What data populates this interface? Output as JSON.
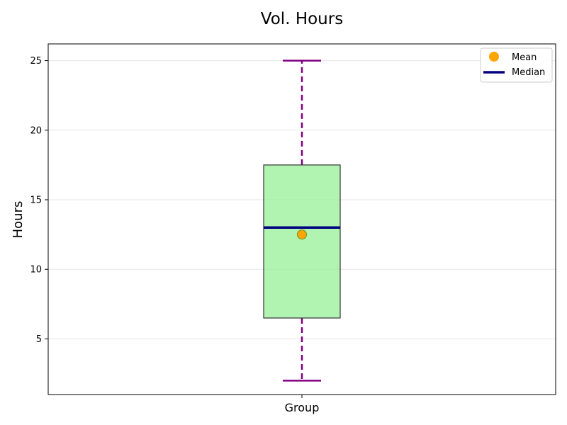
{
  "chart_data": {
    "type": "box",
    "title": "Vol. Hours",
    "xlabel": "",
    "ylabel": "Hours",
    "categories": [
      "Group"
    ],
    "ylim": [
      1,
      26.2
    ],
    "yticks": [
      5,
      10,
      15,
      20,
      25
    ],
    "grid": "y-axis",
    "legend_position": "top-right",
    "box": {
      "whisker_low": 2,
      "q1": 6.5,
      "median": 13,
      "q3": 17.5,
      "whisker_high": 25,
      "mean": 12.5
    },
    "legend": [
      {
        "label": "Mean",
        "marker": "circle"
      },
      {
        "label": "Median",
        "marker": "line"
      }
    ],
    "colors": {
      "box_fill": "#90ee90",
      "box_edge": "#333333",
      "whisker": "#800080",
      "median": "#000080",
      "mean": "#ffa500",
      "grid": "#e6e6e6"
    }
  }
}
